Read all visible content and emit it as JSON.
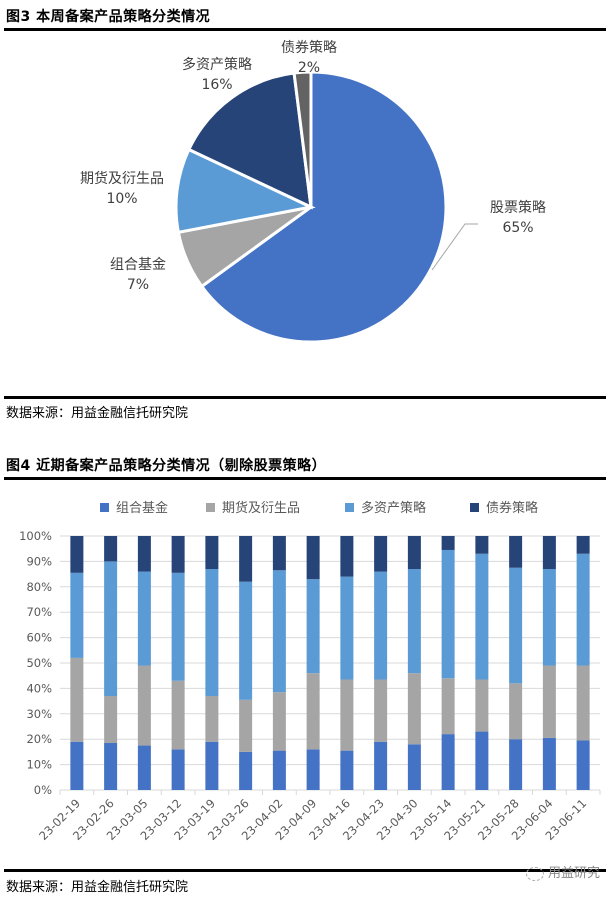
{
  "figure3": {
    "title": "图3  本周备案产品策略分类情况",
    "source": "数据来源：用益金融信托研究院"
  },
  "figure4": {
    "title": "图4  近期备案产品策略分类情况（剔除股票策略）",
    "source": "数据来源：用益金融信托研究院"
  },
  "watermark": "用益研究",
  "colors": {
    "stock": "#4472C4",
    "combo": "#A5A5A5",
    "futures": "#5B9BD5",
    "multi": "#264478",
    "bond": "#636363",
    "bar_combo": "#4472C4",
    "bar_futures": "#A5A5A5",
    "bar_multi": "#5B9BD5",
    "bar_bond": "#264478"
  },
  "chart_data": [
    {
      "type": "pie",
      "title": "本周备案产品策略分类情况",
      "slices": [
        {
          "label": "股票策略",
          "value": 65,
          "display": "65%",
          "color": "#4472C4"
        },
        {
          "label": "组合基金",
          "value": 7,
          "display": "7%",
          "color": "#A5A5A5"
        },
        {
          "label": "期货及衍生品",
          "value": 10,
          "display": "10%",
          "color": "#5B9BD5"
        },
        {
          "label": "多资产策略",
          "value": 16,
          "display": "16%",
          "color": "#264478"
        },
        {
          "label": "债券策略",
          "value": 2,
          "display": "2%",
          "color": "#636363"
        }
      ]
    },
    {
      "type": "bar",
      "stacked": "percent",
      "title": "近期备案产品策略分类情况（剔除股票策略）",
      "legend": [
        "组合基金",
        "期货及衍生品",
        "多资产策略",
        "债券策略"
      ],
      "legend_position": "top",
      "categories": [
        "23-02-19",
        "23-02-26",
        "23-03-05",
        "23-03-12",
        "23-03-19",
        "23-03-26",
        "23-04-02",
        "23-04-09",
        "23-04-16",
        "23-04-23",
        "23-04-30",
        "23-05-14",
        "23-05-21",
        "23-05-28",
        "23-06-04",
        "23-06-11"
      ],
      "series": [
        {
          "name": "组合基金",
          "color": "#4472C4",
          "values": [
            19,
            18.5,
            17.5,
            16,
            19,
            15,
            15.5,
            16,
            15.5,
            19,
            18,
            22,
            23,
            20,
            20.5,
            19.5
          ]
        },
        {
          "name": "期货及衍生品",
          "color": "#A5A5A5",
          "values": [
            33,
            18.5,
            31.5,
            27,
            18,
            20.5,
            23,
            30,
            28,
            24.5,
            28,
            22,
            20.5,
            22,
            28.5,
            29.5
          ]
        },
        {
          "name": "多资产策略",
          "color": "#5B9BD5",
          "values": [
            33.5,
            53,
            37,
            42.5,
            50,
            46.5,
            48,
            37,
            40.5,
            42.5,
            41,
            50.5,
            49.5,
            45.5,
            38,
            44
          ]
        },
        {
          "name": "债券策略",
          "color": "#264478",
          "values": [
            14.5,
            10,
            14,
            14.5,
            13,
            18,
            13.5,
            17,
            16,
            14,
            13,
            5.5,
            7,
            12.5,
            13,
            7
          ]
        }
      ],
      "yticks": [
        "0%",
        "10%",
        "20%",
        "30%",
        "40%",
        "50%",
        "60%",
        "70%",
        "80%",
        "90%",
        "100%"
      ],
      "ylim": [
        0,
        100
      ],
      "grid": true,
      "xlabel": "",
      "ylabel": ""
    }
  ]
}
